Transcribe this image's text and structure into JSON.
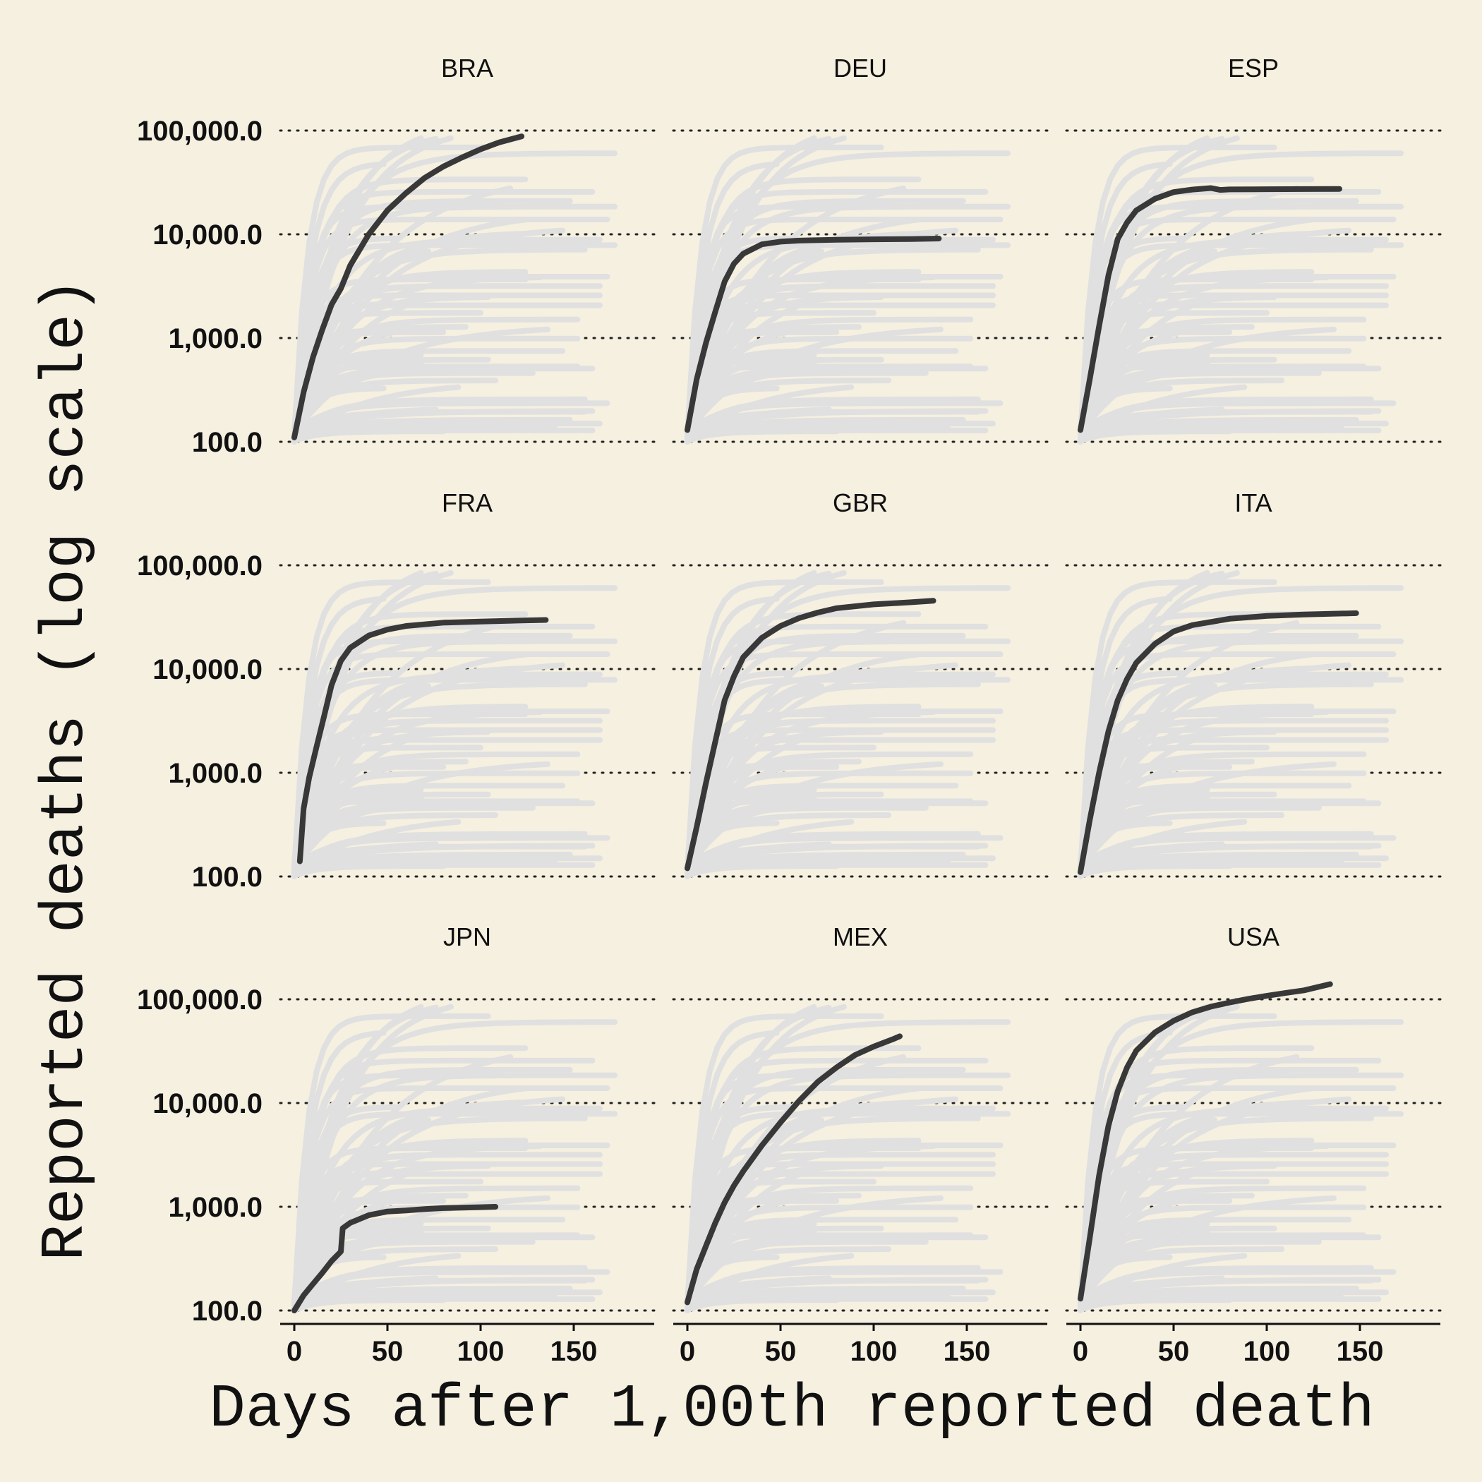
{
  "colors": {
    "background": "#f6f0e1",
    "highlight": "#383838",
    "context": "#e0e0e0",
    "text": "#111111"
  },
  "chart_data": {
    "type": "line",
    "facet": "small multiples by country; highlighted country in dark, all other countries shown in light grey in every panel",
    "xlabel": "Days after 1,00th reported death",
    "ylabel": "Reported deaths (log scale)",
    "y_scale": "log10",
    "ylim": [
      100,
      100000
    ],
    "xlim": [
      0,
      190
    ],
    "y_ticks": [
      100,
      1000,
      10000,
      100000
    ],
    "y_tick_labels": [
      "100.0",
      "1,000.0",
      "10,000.0",
      "100,000.0"
    ],
    "x_ticks": [
      0,
      50,
      100,
      150
    ],
    "x_tick_labels": [
      "0",
      "50",
      "100",
      "150"
    ],
    "grid": "horizontal dotted",
    "panels": [
      {
        "name": "BRA",
        "x": [
          0,
          5,
          10,
          15,
          20,
          25,
          30,
          40,
          50,
          60,
          70,
          80,
          90,
          100,
          110,
          122
        ],
        "y": [
          110,
          300,
          650,
          1200,
          2100,
          3000,
          5000,
          10000,
          17000,
          25000,
          35000,
          45000,
          55000,
          66000,
          77000,
          88000
        ]
      },
      {
        "name": "DEU",
        "x": [
          0,
          5,
          10,
          15,
          20,
          25,
          30,
          40,
          50,
          60,
          80,
          100,
          120,
          135
        ],
        "y": [
          130,
          400,
          900,
          1800,
          3500,
          5200,
          6500,
          8000,
          8500,
          8700,
          8850,
          8950,
          9000,
          9100
        ]
      },
      {
        "name": "ESP",
        "x": [
          0,
          5,
          10,
          15,
          20,
          25,
          30,
          40,
          50,
          60,
          70,
          75,
          80,
          100,
          120,
          139
        ],
        "y": [
          130,
          400,
          1300,
          4000,
          9000,
          13000,
          17000,
          22000,
          25500,
          27000,
          27900,
          26800,
          27100,
          27200,
          27300,
          27400
        ]
      },
      {
        "name": "FRA",
        "x": [
          3,
          5,
          8,
          12,
          16,
          20,
          25,
          30,
          40,
          50,
          60,
          80,
          100,
          120,
          135
        ],
        "y": [
          140,
          450,
          900,
          1800,
          3500,
          7000,
          12000,
          16000,
          21000,
          24000,
          26000,
          28000,
          28700,
          29300,
          29700
        ]
      },
      {
        "name": "GBR",
        "x": [
          0,
          5,
          10,
          15,
          20,
          25,
          30,
          40,
          50,
          60,
          70,
          80,
          100,
          120,
          132
        ],
        "y": [
          120,
          300,
          800,
          2000,
          5000,
          8500,
          13000,
          20000,
          26000,
          31000,
          35000,
          38500,
          42000,
          44000,
          45500
        ]
      },
      {
        "name": "ITA",
        "x": [
          0,
          5,
          10,
          15,
          20,
          25,
          30,
          40,
          50,
          60,
          80,
          100,
          120,
          148
        ],
        "y": [
          110,
          350,
          1000,
          2500,
          5000,
          8000,
          11500,
          17500,
          23000,
          26500,
          30500,
          32500,
          33500,
          34500
        ]
      },
      {
        "name": "JPN",
        "x": [
          0,
          5,
          10,
          15,
          20,
          25,
          26,
          30,
          40,
          50,
          60,
          70,
          80,
          90,
          100,
          108
        ],
        "y": [
          100,
          140,
          180,
          230,
          300,
          370,
          620,
          700,
          830,
          900,
          920,
          950,
          970,
          980,
          990,
          1000
        ]
      },
      {
        "name": "MEX",
        "x": [
          0,
          5,
          10,
          15,
          20,
          25,
          30,
          40,
          50,
          60,
          70,
          80,
          90,
          100,
          110,
          114
        ],
        "y": [
          120,
          250,
          420,
          700,
          1100,
          1600,
          2200,
          3900,
          6500,
          10500,
          16000,
          22000,
          29000,
          35000,
          41000,
          44000
        ]
      },
      {
        "name": "USA",
        "x": [
          0,
          5,
          10,
          15,
          20,
          25,
          30,
          40,
          50,
          60,
          70,
          80,
          90,
          100,
          110,
          120,
          134
        ],
        "y": [
          130,
          500,
          2000,
          6000,
          13000,
          22000,
          32000,
          48000,
          62000,
          75000,
          85000,
          93000,
          101000,
          108000,
          115000,
          122000,
          140000
        ]
      }
    ],
    "context_series_note": "light-grey background curves are the other countries' trajectories, repeated identically in every panel"
  }
}
